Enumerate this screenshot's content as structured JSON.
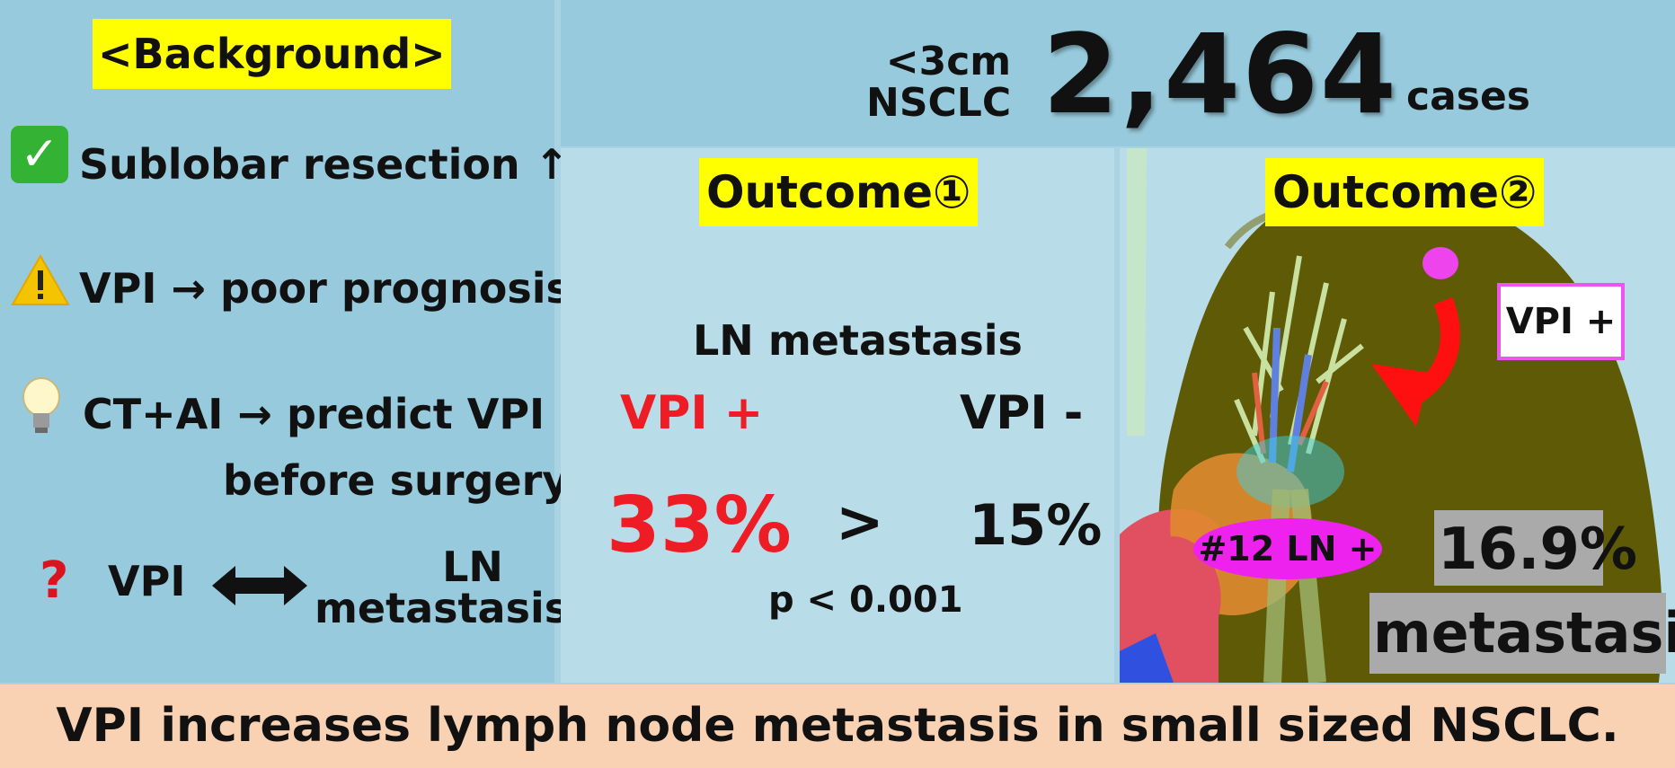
{
  "background": {
    "title": "<Background>",
    "items": [
      {
        "icon": "check-icon",
        "text": "Sublobar resection ↑"
      },
      {
        "icon": "warning-icon",
        "text": "VPI → poor prognosis"
      },
      {
        "icon": "lightbulb-icon",
        "text_line1": "CT+AI → predict VPI",
        "text_line2": "before surgery"
      },
      {
        "icon": "question-icon",
        "left": "VPI",
        "right_line1": "LN",
        "right_line2": "metastasis"
      }
    ],
    "check_glyph": "✓",
    "question_glyph": "?"
  },
  "header": {
    "size_label": "<3cm",
    "type_label": "NSCLC",
    "count": "2,464",
    "unit": "cases"
  },
  "outcome1": {
    "title": "Outcome①",
    "label": "LN metastasis",
    "vpi_pos": "VPI +",
    "vpi_neg": "VPI -",
    "vpi_pos_value": "33%",
    "comparator": ">",
    "vpi_neg_value": "15%",
    "p_value": "p < 0.001"
  },
  "outcome2": {
    "title": "Outcome②",
    "vpi_label": "VPI +",
    "node_label": "#12 LN +",
    "percent": "16.9%",
    "metastasis": "metastasis"
  },
  "footer": {
    "conclusion": "VPI increases lymph node metastasis in small sized NSCLC."
  },
  "colors": {
    "highlight": "#ffff00",
    "red": "#ee1c24",
    "magenta": "#ee22ee",
    "footer_bg": "#f9d1b3",
    "panel_bg": "#96cadc",
    "lung": "#5f5a06"
  }
}
